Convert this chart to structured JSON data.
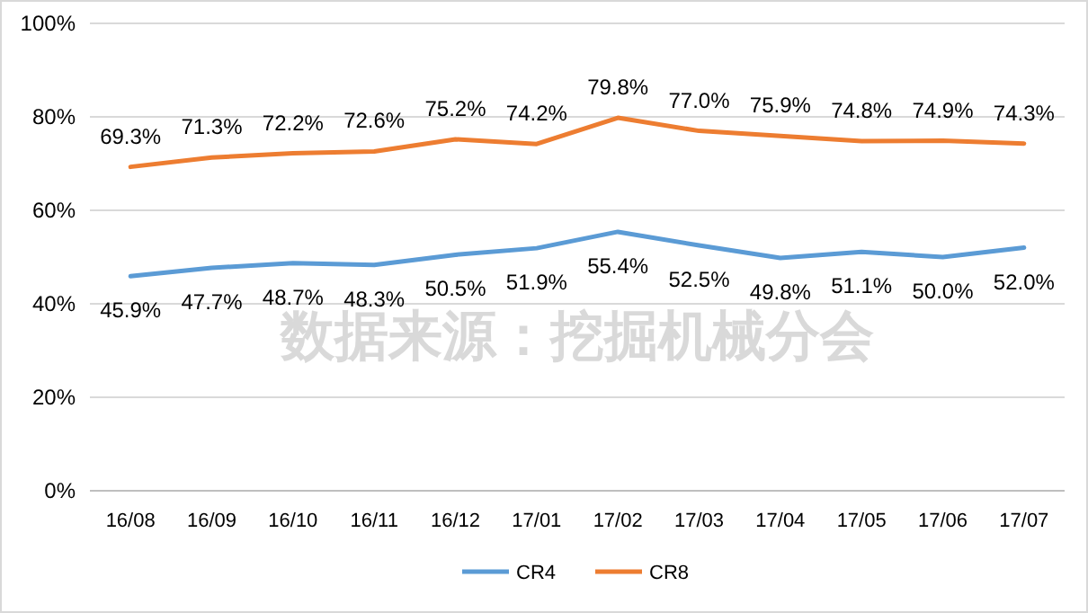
{
  "chart_data": {
    "type": "line",
    "categories": [
      "16/08",
      "16/09",
      "16/10",
      "16/11",
      "16/12",
      "17/01",
      "17/02",
      "17/03",
      "17/04",
      "17/05",
      "17/06",
      "17/07"
    ],
    "series": [
      {
        "name": "CR4",
        "color": "#5b9bd5",
        "values": [
          45.9,
          47.7,
          48.7,
          48.3,
          50.5,
          51.9,
          55.4,
          52.5,
          49.8,
          51.1,
          50.0,
          52.0
        ],
        "value_labels": [
          "45.9%",
          "47.7%",
          "48.7%",
          "48.3%",
          "50.5%",
          "51.9%",
          "55.4%",
          "52.5%",
          "49.8%",
          "51.1%",
          "50.0%",
          "52.0%"
        ]
      },
      {
        "name": "CR8",
        "color": "#ed7d31",
        "values": [
          69.3,
          71.3,
          72.2,
          72.6,
          75.2,
          74.2,
          79.8,
          77.0,
          75.9,
          74.8,
          74.9,
          74.3
        ],
        "value_labels": [
          "69.3%",
          "71.3%",
          "72.2%",
          "72.6%",
          "75.2%",
          "74.2%",
          "79.8%",
          "77.0%",
          "75.9%",
          "74.8%",
          "74.9%",
          "74.3%"
        ]
      }
    ],
    "ylim": [
      0,
      100
    ],
    "yticks": [
      {
        "value": 0,
        "label": "0%"
      },
      {
        "value": 20,
        "label": "20%"
      },
      {
        "value": 40,
        "label": "40%"
      },
      {
        "value": 60,
        "label": "60%"
      },
      {
        "value": 80,
        "label": "80%"
      },
      {
        "value": 100,
        "label": "100%"
      }
    ],
    "grid": "y",
    "legend": "bottom",
    "marker": "none",
    "line_style": "solid",
    "annotations": [
      "数据来源：挖掘机械分会"
    ]
  }
}
